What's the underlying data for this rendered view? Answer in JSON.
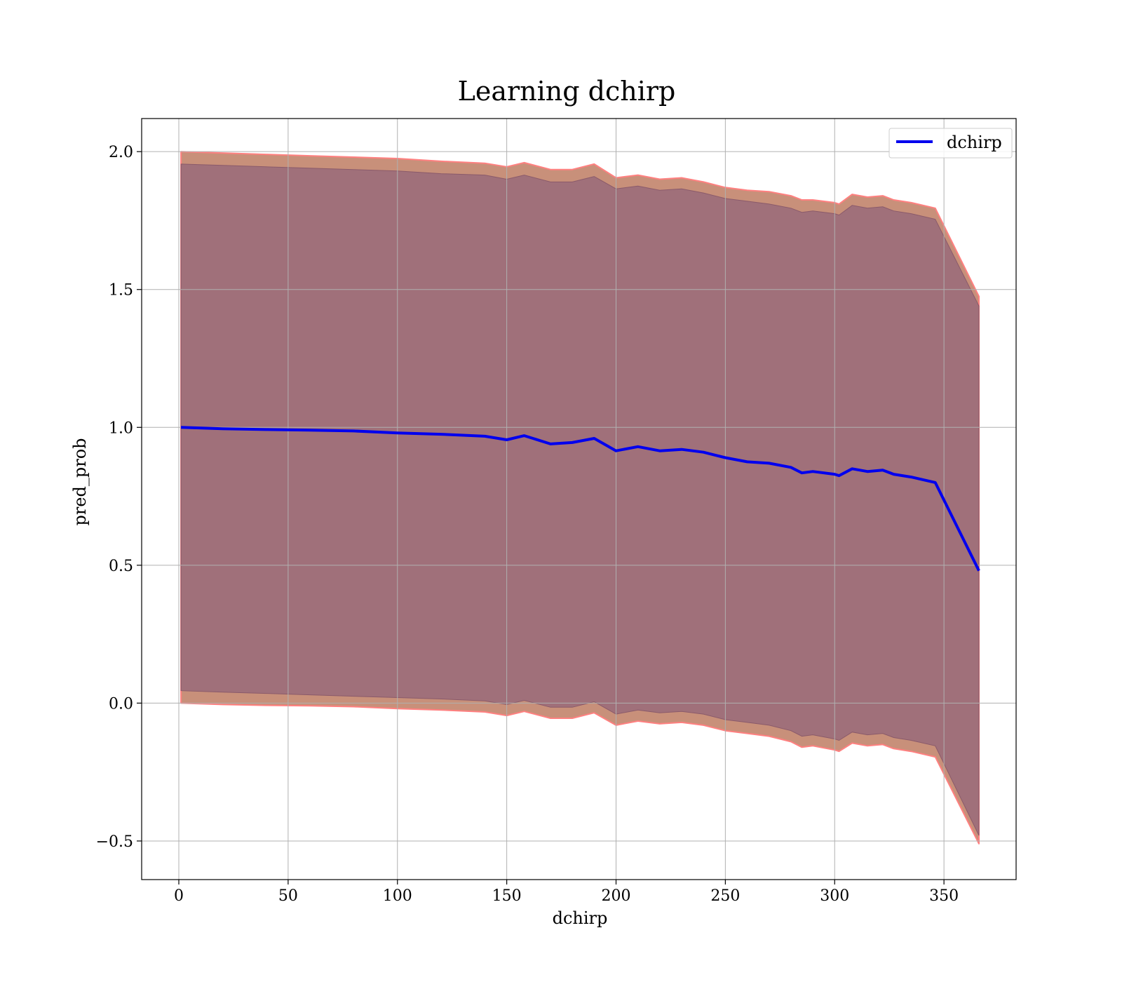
{
  "chart_data": {
    "type": "line",
    "title": "Learning dchirp",
    "xlabel": "dchirp",
    "ylabel": "pred_prob",
    "xlim": [
      -17,
      383
    ],
    "ylim": [
      -0.64,
      2.12
    ],
    "xticks": [
      0,
      50,
      100,
      150,
      200,
      250,
      300,
      350
    ],
    "yticks": [
      -0.5,
      0.0,
      0.5,
      1.0,
      1.5,
      2.0
    ],
    "ytick_labels": [
      "−0.5",
      "0.0",
      "0.5",
      "1.0",
      "1.5",
      "2.0"
    ],
    "grid": true,
    "legend": {
      "position": "top-right",
      "entries": [
        "dchirp"
      ]
    },
    "colors": {
      "line": "#0000ee",
      "outer_band": "#c8907a",
      "outer_band_edge": "#ff8080",
      "inner_band": "#a0707a",
      "grid": "#b0b0b0"
    },
    "series": [
      {
        "name": "dchirp",
        "x": [
          1,
          20,
          40,
          60,
          80,
          100,
          120,
          140,
          150,
          158,
          170,
          180,
          190,
          200,
          210,
          220,
          230,
          240,
          250,
          260,
          270,
          280,
          285,
          290,
          300,
          302,
          308,
          315,
          322,
          327,
          335,
          346,
          366
        ],
        "y": [
          1.0,
          0.995,
          0.992,
          0.99,
          0.987,
          0.98,
          0.975,
          0.968,
          0.955,
          0.97,
          0.94,
          0.945,
          0.96,
          0.915,
          0.93,
          0.915,
          0.92,
          0.91,
          0.89,
          0.875,
          0.87,
          0.855,
          0.835,
          0.84,
          0.83,
          0.825,
          0.85,
          0.84,
          0.845,
          0.83,
          0.82,
          0.8,
          0.48
        ]
      }
    ],
    "outer_band": {
      "upper": [
        2.0,
        1.995,
        1.99,
        1.985,
        1.98,
        1.975,
        1.965,
        1.958,
        1.945,
        1.96,
        1.935,
        1.935,
        1.955,
        1.905,
        1.915,
        1.9,
        1.905,
        1.89,
        1.87,
        1.86,
        1.855,
        1.84,
        1.825,
        1.825,
        1.815,
        1.81,
        1.845,
        1.835,
        1.84,
        1.825,
        1.815,
        1.795,
        1.475
      ],
      "lower": [
        0.0,
        -0.005,
        -0.008,
        -0.01,
        -0.013,
        -0.02,
        -0.025,
        -0.032,
        -0.045,
        -0.03,
        -0.055,
        -0.055,
        -0.035,
        -0.08,
        -0.065,
        -0.075,
        -0.07,
        -0.08,
        -0.1,
        -0.11,
        -0.12,
        -0.14,
        -0.16,
        -0.155,
        -0.17,
        -0.175,
        -0.145,
        -0.155,
        -0.15,
        -0.165,
        -0.175,
        -0.195,
        -0.51
      ]
    },
    "inner_band": {
      "upper": [
        1.955,
        1.95,
        1.945,
        1.94,
        1.935,
        1.93,
        1.92,
        1.915,
        1.9,
        1.915,
        1.89,
        1.89,
        1.91,
        1.865,
        1.875,
        1.86,
        1.865,
        1.85,
        1.83,
        1.82,
        1.81,
        1.795,
        1.78,
        1.785,
        1.775,
        1.77,
        1.805,
        1.795,
        1.8,
        1.785,
        1.775,
        1.755,
        1.44
      ],
      "lower": [
        0.045,
        0.04,
        0.035,
        0.03,
        0.025,
        0.02,
        0.015,
        0.008,
        -0.005,
        0.01,
        -0.015,
        -0.015,
        0.005,
        -0.04,
        -0.025,
        -0.035,
        -0.03,
        -0.04,
        -0.06,
        -0.07,
        -0.08,
        -0.1,
        -0.12,
        -0.115,
        -0.13,
        -0.135,
        -0.105,
        -0.115,
        -0.11,
        -0.125,
        -0.135,
        -0.155,
        -0.48
      ]
    }
  }
}
